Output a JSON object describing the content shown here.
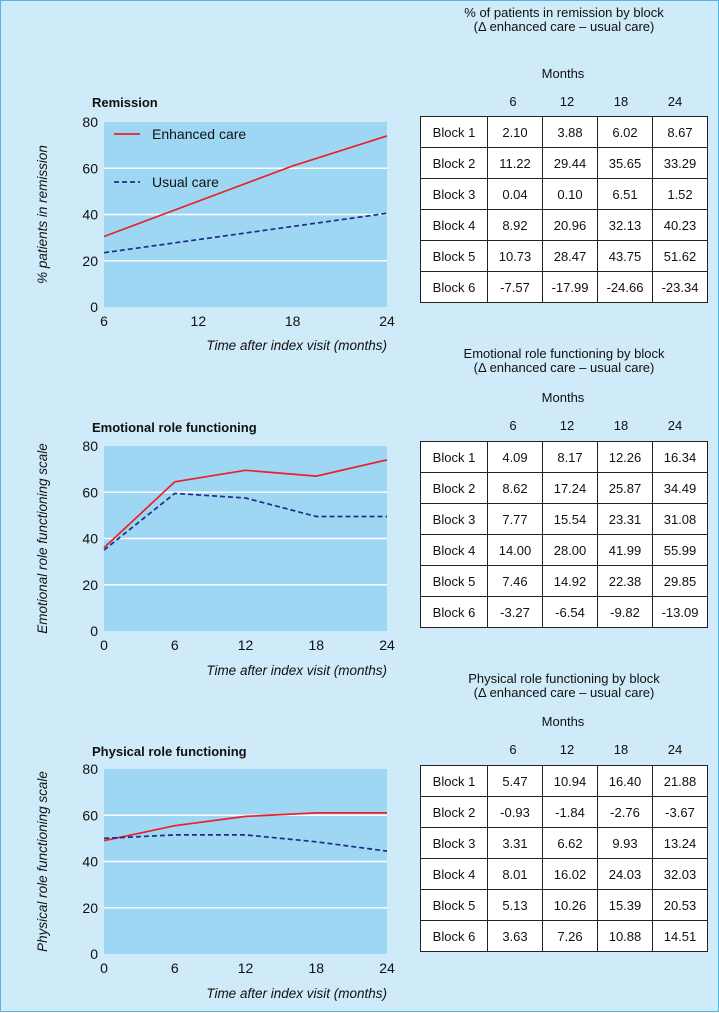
{
  "chart_data": [
    {
      "type": "line",
      "title": "Remission",
      "xlabel": "Time after index visit (months)",
      "ylabel": "% patients in remission",
      "xlim": [
        6,
        24
      ],
      "ylim": [
        0,
        80
      ],
      "xticks": [
        6,
        12,
        18,
        24
      ],
      "yticks": [
        0,
        20,
        40,
        60,
        80
      ],
      "grid": true,
      "legend": "top-left",
      "series": [
        {
          "name": "Enhanced care",
          "x": [
            6,
            18,
            24
          ],
          "y": [
            30.5,
            61,
            74
          ],
          "color": "#e8212a",
          "style": "solid"
        },
        {
          "name": "Usual care",
          "x": [
            6,
            24
          ],
          "y": [
            23.5,
            40.5
          ],
          "color": "#1f2e8c",
          "style": "dashed"
        }
      ]
    },
    {
      "type": "line",
      "title": "Emotional role functioning",
      "xlabel": "Time after index visit (months)",
      "ylabel": "Emotional role functioning scale",
      "xlim": [
        0,
        24
      ],
      "ylim": [
        0,
        80
      ],
      "xticks": [
        0,
        6,
        12,
        18,
        24
      ],
      "yticks": [
        0,
        20,
        40,
        60,
        80
      ],
      "grid": true,
      "series": [
        {
          "x": [
            0,
            6,
            12,
            18,
            24
          ],
          "y": [
            36,
            64.5,
            69.5,
            67,
            74
          ],
          "color": "#e8212a",
          "style": "solid"
        },
        {
          "x": [
            0,
            6,
            12,
            18,
            24
          ],
          "y": [
            35,
            59.5,
            57.5,
            49.5,
            49.5
          ],
          "color": "#1f2e8c",
          "style": "dashed"
        }
      ]
    },
    {
      "type": "line",
      "title": "Physical role functioning",
      "xlabel": "Time after index visit (months)",
      "ylabel": "Physical role functioning scale",
      "xlim": [
        0,
        24
      ],
      "ylim": [
        0,
        80
      ],
      "xticks": [
        0,
        6,
        12,
        18,
        24
      ],
      "yticks": [
        0,
        20,
        40,
        60,
        80
      ],
      "grid": true,
      "series": [
        {
          "x": [
            0,
            6,
            12,
            18,
            24
          ],
          "y": [
            49,
            55.5,
            59.5,
            61,
            61
          ],
          "color": "#e8212a",
          "style": "solid"
        },
        {
          "x": [
            0,
            6,
            12,
            18,
            24
          ],
          "y": [
            50,
            51.5,
            51.5,
            48.5,
            44.5
          ],
          "color": "#1f2e8c",
          "style": "dashed"
        }
      ]
    },
    {
      "type": "table",
      "title": "% of patients in remission by block\n(Δ enhanced care – usual care)",
      "column_group": "Months",
      "columns": [
        "6",
        "12",
        "18",
        "24"
      ],
      "rows": [
        {
          "label": "Block 1",
          "values": [
            "2.10",
            "3.88",
            "6.02",
            "8.67"
          ]
        },
        {
          "label": "Block 2",
          "values": [
            "11.22",
            "29.44",
            "35.65",
            "33.29"
          ]
        },
        {
          "label": "Block 3",
          "values": [
            "0.04",
            "0.10",
            "6.51",
            "1.52"
          ]
        },
        {
          "label": "Block 4",
          "values": [
            "8.92",
            "20.96",
            "32.13",
            "40.23"
          ]
        },
        {
          "label": "Block 5",
          "values": [
            "10.73",
            "28.47",
            "43.75",
            "51.62"
          ]
        },
        {
          "label": "Block 6",
          "values": [
            "-7.57",
            "-17.99",
            "-24.66",
            "-23.34"
          ]
        }
      ]
    },
    {
      "type": "table",
      "title": "Emotional role functioning by block\n(Δ enhanced care – usual care)",
      "column_group": "Months",
      "columns": [
        "6",
        "12",
        "18",
        "24"
      ],
      "rows": [
        {
          "label": "Block 1",
          "values": [
            "4.09",
            "8.17",
            "12.26",
            "16.34"
          ]
        },
        {
          "label": "Block 2",
          "values": [
            "8.62",
            "17.24",
            "25.87",
            "34.49"
          ]
        },
        {
          "label": "Block 3",
          "values": [
            "7.77",
            "15.54",
            "23.31",
            "31.08"
          ]
        },
        {
          "label": "Block 4",
          "values": [
            "14.00",
            "28.00",
            "41.99",
            "55.99"
          ]
        },
        {
          "label": "Block 5",
          "values": [
            "7.46",
            "14.92",
            "22.38",
            "29.85"
          ]
        },
        {
          "label": "Block 6",
          "values": [
            "-3.27",
            "-6.54",
            "-9.82",
            "-13.09"
          ]
        }
      ]
    },
    {
      "type": "table",
      "title": "Physical role functioning by block\n(Δ enhanced care – usual care)",
      "column_group": "Months",
      "columns": [
        "6",
        "12",
        "18",
        "24"
      ],
      "rows": [
        {
          "label": "Block 1",
          "values": [
            "5.47",
            "10.94",
            "16.40",
            "21.88"
          ]
        },
        {
          "label": "Block 2",
          "values": [
            "-0.93",
            "-1.84",
            "-2.76",
            "-3.67"
          ]
        },
        {
          "label": "Block 3",
          "values": [
            "3.31",
            "6.62",
            "9.93",
            "13.24"
          ]
        },
        {
          "label": "Block 4",
          "values": [
            "8.01",
            "16.02",
            "24.03",
            "32.03"
          ]
        },
        {
          "label": "Block 5",
          "values": [
            "5.13",
            "10.26",
            "15.39",
            "20.53"
          ]
        },
        {
          "label": "Block 6",
          "values": [
            "3.63",
            "7.26",
            "10.88",
            "14.51"
          ]
        }
      ]
    }
  ]
}
